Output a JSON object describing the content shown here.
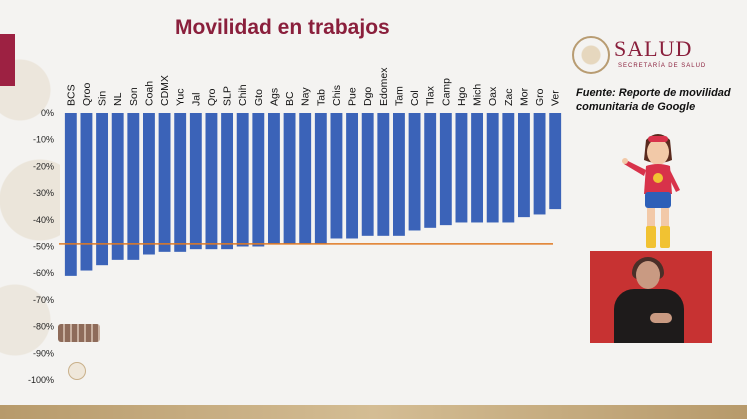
{
  "colors": {
    "bar": "#3b63b8",
    "reference_line": "#e07a24",
    "title": "#8a1f3c",
    "brand": "#8a1f3c"
  },
  "chart_data": {
    "type": "bar",
    "title": "Movilidad en trabajos",
    "categories": [
      "BCS",
      "Qroo",
      "Sin",
      "NL",
      "Son",
      "Coah",
      "CDMX",
      "Yuc",
      "Jal",
      "Qro",
      "SLP",
      "Chih",
      "Gto",
      "Ags",
      "BC",
      "Nay",
      "Tab",
      "Chis",
      "Pue",
      "Dgo",
      "Edomex",
      "Tam",
      "Col",
      "Tlax",
      "Camp",
      "Hgo",
      "Mich",
      "Oax",
      "Zac",
      "Mor",
      "Gro",
      "Ver"
    ],
    "values": [
      -61,
      -59,
      -57,
      -55,
      -55,
      -53,
      -52,
      -52,
      -51,
      -51,
      -51,
      -50,
      -50,
      -49,
      -49,
      -49,
      -49,
      -47,
      -47,
      -46,
      -46,
      -46,
      -44,
      -43,
      -42,
      -41,
      -41,
      -41,
      -41,
      -39,
      -38,
      -36
    ],
    "y_ticks": [
      "0%",
      "-10%",
      "-20%",
      "-30%",
      "-40%",
      "-50%",
      "-60%",
      "-70%",
      "-80%",
      "-90%",
      "-100%"
    ],
    "ylim": [
      -100,
      0
    ],
    "reference_line": -49,
    "grid": false,
    "legend": "none"
  },
  "brand": {
    "name": "SALUD",
    "subtitle": "SECRETARÍA DE SALUD"
  },
  "source_note": "Fuente: Reporte de movilidad comunitaria de Google",
  "icons": [
    "government-seal-icon",
    "mascot-illustration",
    "sign-language-interpreter",
    "institutional-logos-icon"
  ]
}
